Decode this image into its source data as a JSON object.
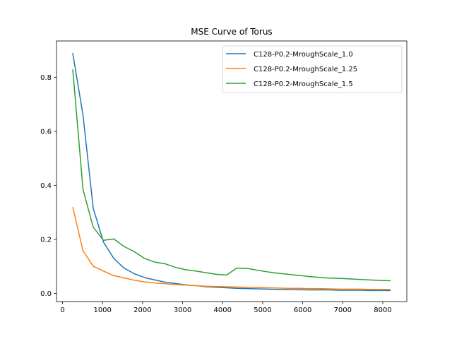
{
  "chart_data": {
    "type": "line",
    "title": "MSE Curve of Torus",
    "xlabel": "",
    "ylabel": "",
    "xlim": [
      -150,
      8600
    ],
    "ylim": [
      -0.03,
      0.935
    ],
    "xticks": [
      0,
      1000,
      2000,
      3000,
      4000,
      5000,
      6000,
      7000,
      8000
    ],
    "yticks": [
      0.0,
      0.2,
      0.4,
      0.6,
      0.8
    ],
    "ytick_labels": [
      "0.0",
      "0.2",
      "0.4",
      "0.6",
      "0.8"
    ],
    "grid": false,
    "legend_position": "top-right",
    "series": [
      {
        "name": "C128-P0.2-MroughScale_1.0",
        "color": "#1f77b4",
        "x": [
          256,
          512,
          768,
          1024,
          1280,
          1536,
          1792,
          2048,
          2304,
          2560,
          2816,
          3072,
          3328,
          3584,
          3840,
          4096,
          4352,
          4608,
          4864,
          5120,
          5376,
          5632,
          5888,
          6144,
          6400,
          6656,
          6912,
          7168,
          7424,
          7680,
          7936,
          8192
        ],
        "y": [
          0.89,
          0.66,
          0.315,
          0.19,
          0.13,
          0.094,
          0.073,
          0.059,
          0.05,
          0.042,
          0.037,
          0.032,
          0.029,
          0.025,
          0.023,
          0.021,
          0.019,
          0.018,
          0.017,
          0.016,
          0.015,
          0.014,
          0.014,
          0.013,
          0.013,
          0.013,
          0.012,
          0.012,
          0.012,
          0.011,
          0.011,
          0.011
        ]
      },
      {
        "name": "C128-P0.2-MroughScale_1.25",
        "color": "#ff7f0e",
        "x": [
          256,
          512,
          768,
          1024,
          1280,
          1536,
          1792,
          2048,
          2304,
          2560,
          2816,
          3072,
          3328,
          3584,
          3840,
          4096,
          4352,
          4608,
          4864,
          5120,
          5376,
          5632,
          5888,
          6144,
          6400,
          6656,
          6912,
          7168,
          7424,
          7680,
          7936,
          8192
        ],
        "y": [
          0.32,
          0.158,
          0.101,
          0.083,
          0.066,
          0.058,
          0.049,
          0.043,
          0.039,
          0.036,
          0.033,
          0.031,
          0.029,
          0.027,
          0.026,
          0.025,
          0.024,
          0.023,
          0.022,
          0.021,
          0.02,
          0.019,
          0.019,
          0.018,
          0.018,
          0.017,
          0.016,
          0.016,
          0.016,
          0.015,
          0.015,
          0.015
        ]
      },
      {
        "name": "C128-P0.2-MroughScale_1.5",
        "color": "#2ca02c",
        "x": [
          256,
          512,
          768,
          1024,
          1280,
          1536,
          1792,
          2048,
          2304,
          2560,
          2816,
          3072,
          3328,
          3584,
          3840,
          4096,
          4352,
          4608,
          4864,
          5120,
          5376,
          5632,
          5888,
          6144,
          6400,
          6656,
          6912,
          7168,
          7424,
          7680,
          7936,
          8192
        ],
        "y": [
          0.83,
          0.385,
          0.245,
          0.197,
          0.202,
          0.174,
          0.155,
          0.13,
          0.116,
          0.11,
          0.097,
          0.088,
          0.083,
          0.077,
          0.071,
          0.068,
          0.094,
          0.093,
          0.086,
          0.08,
          0.075,
          0.071,
          0.067,
          0.063,
          0.06,
          0.057,
          0.056,
          0.054,
          0.052,
          0.05,
          0.048,
          0.047
        ]
      }
    ]
  }
}
